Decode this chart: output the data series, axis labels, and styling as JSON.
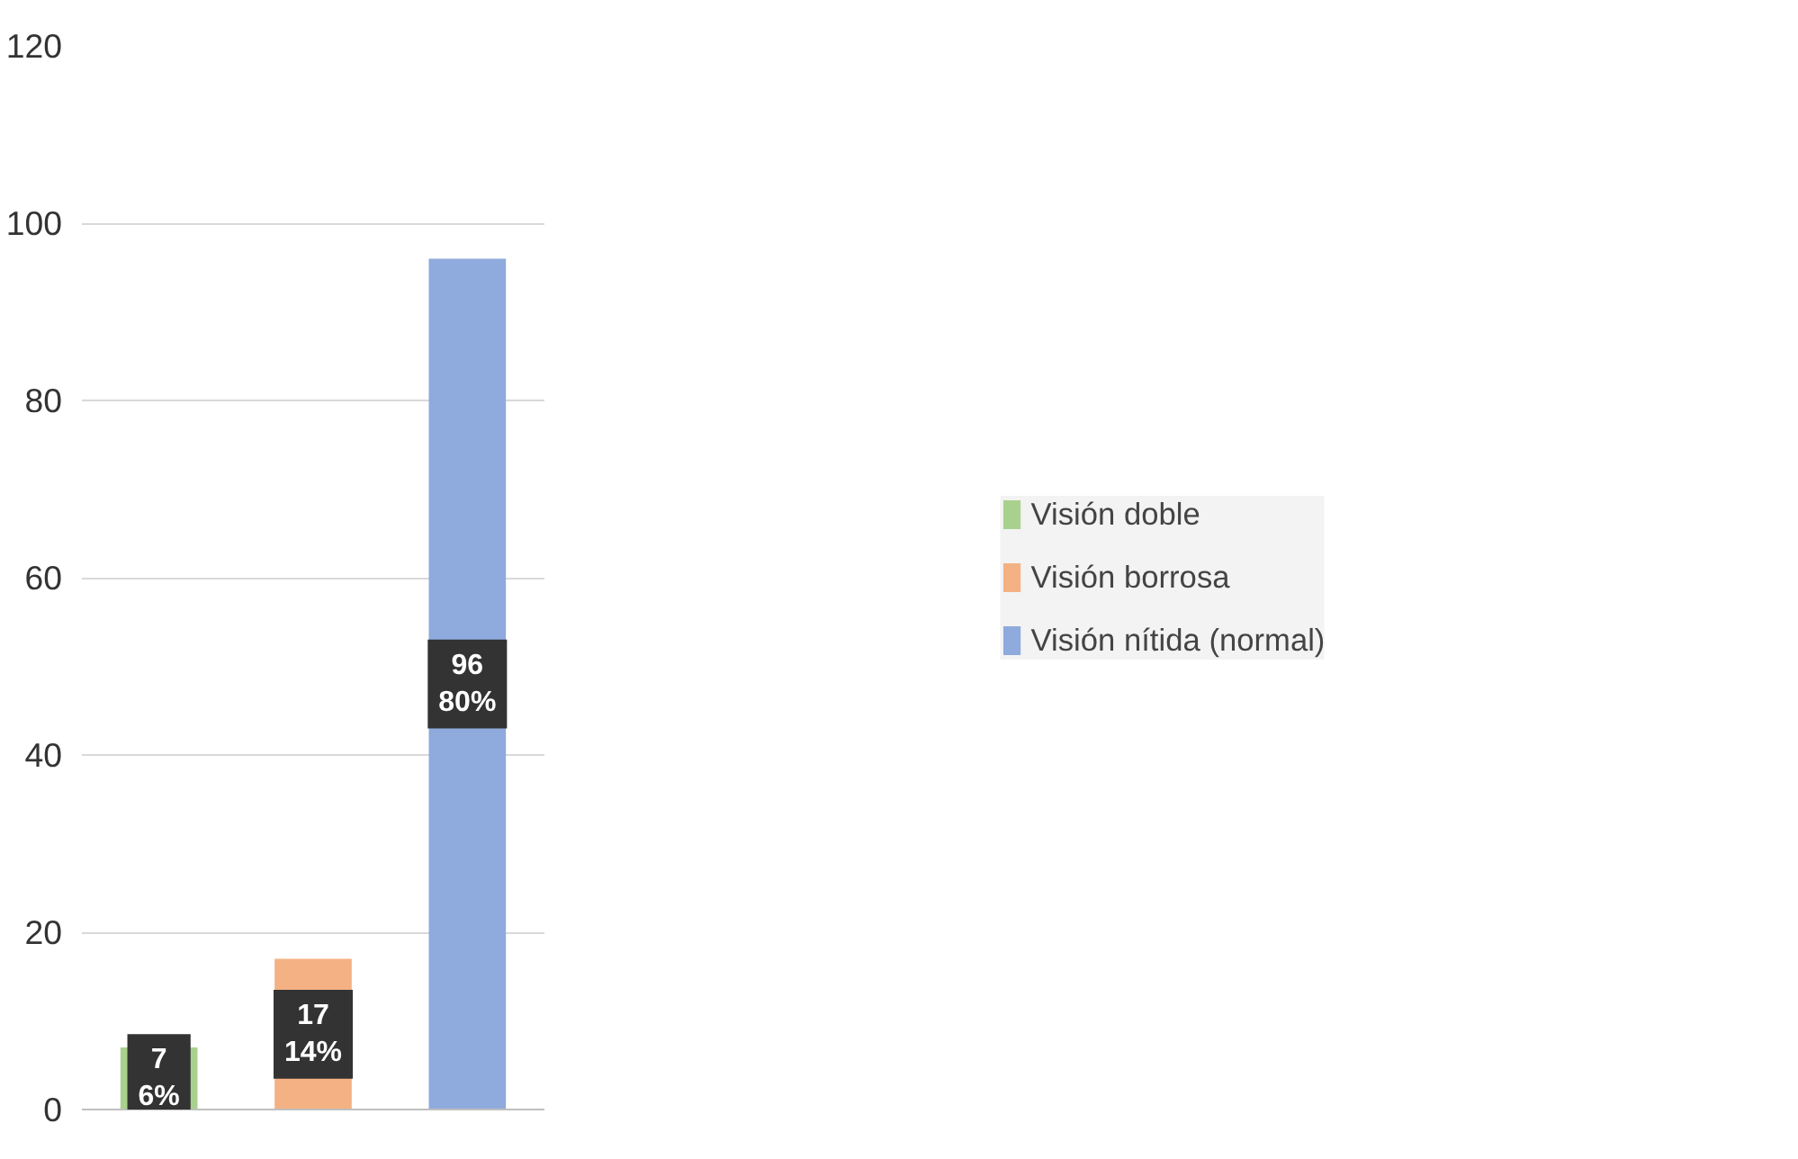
{
  "chart_data": {
    "type": "bar",
    "categories": [
      null,
      null,
      null
    ],
    "series": [
      {
        "name": "Visión doble",
        "color": "#a9d18e",
        "values": [
          7,
          null,
          null
        ],
        "value_labels": [
          "7\n6%",
          null,
          null
        ]
      },
      {
        "name": "Visión borrosa",
        "color": "#f4b183",
        "values": [
          null,
          17,
          null
        ],
        "value_labels": [
          null,
          "17\n14%",
          null
        ]
      },
      {
        "name": "Visión nítida (normal)",
        "color": "#8faadc",
        "values": [
          null,
          null,
          96
        ],
        "value_labels": [
          null,
          null,
          "96\n80%"
        ]
      }
    ],
    "ylim": [
      0,
      120
    ],
    "yticks": [
      0,
      20,
      40,
      60,
      80,
      100,
      120
    ],
    "grid": "y",
    "legend": "right"
  }
}
